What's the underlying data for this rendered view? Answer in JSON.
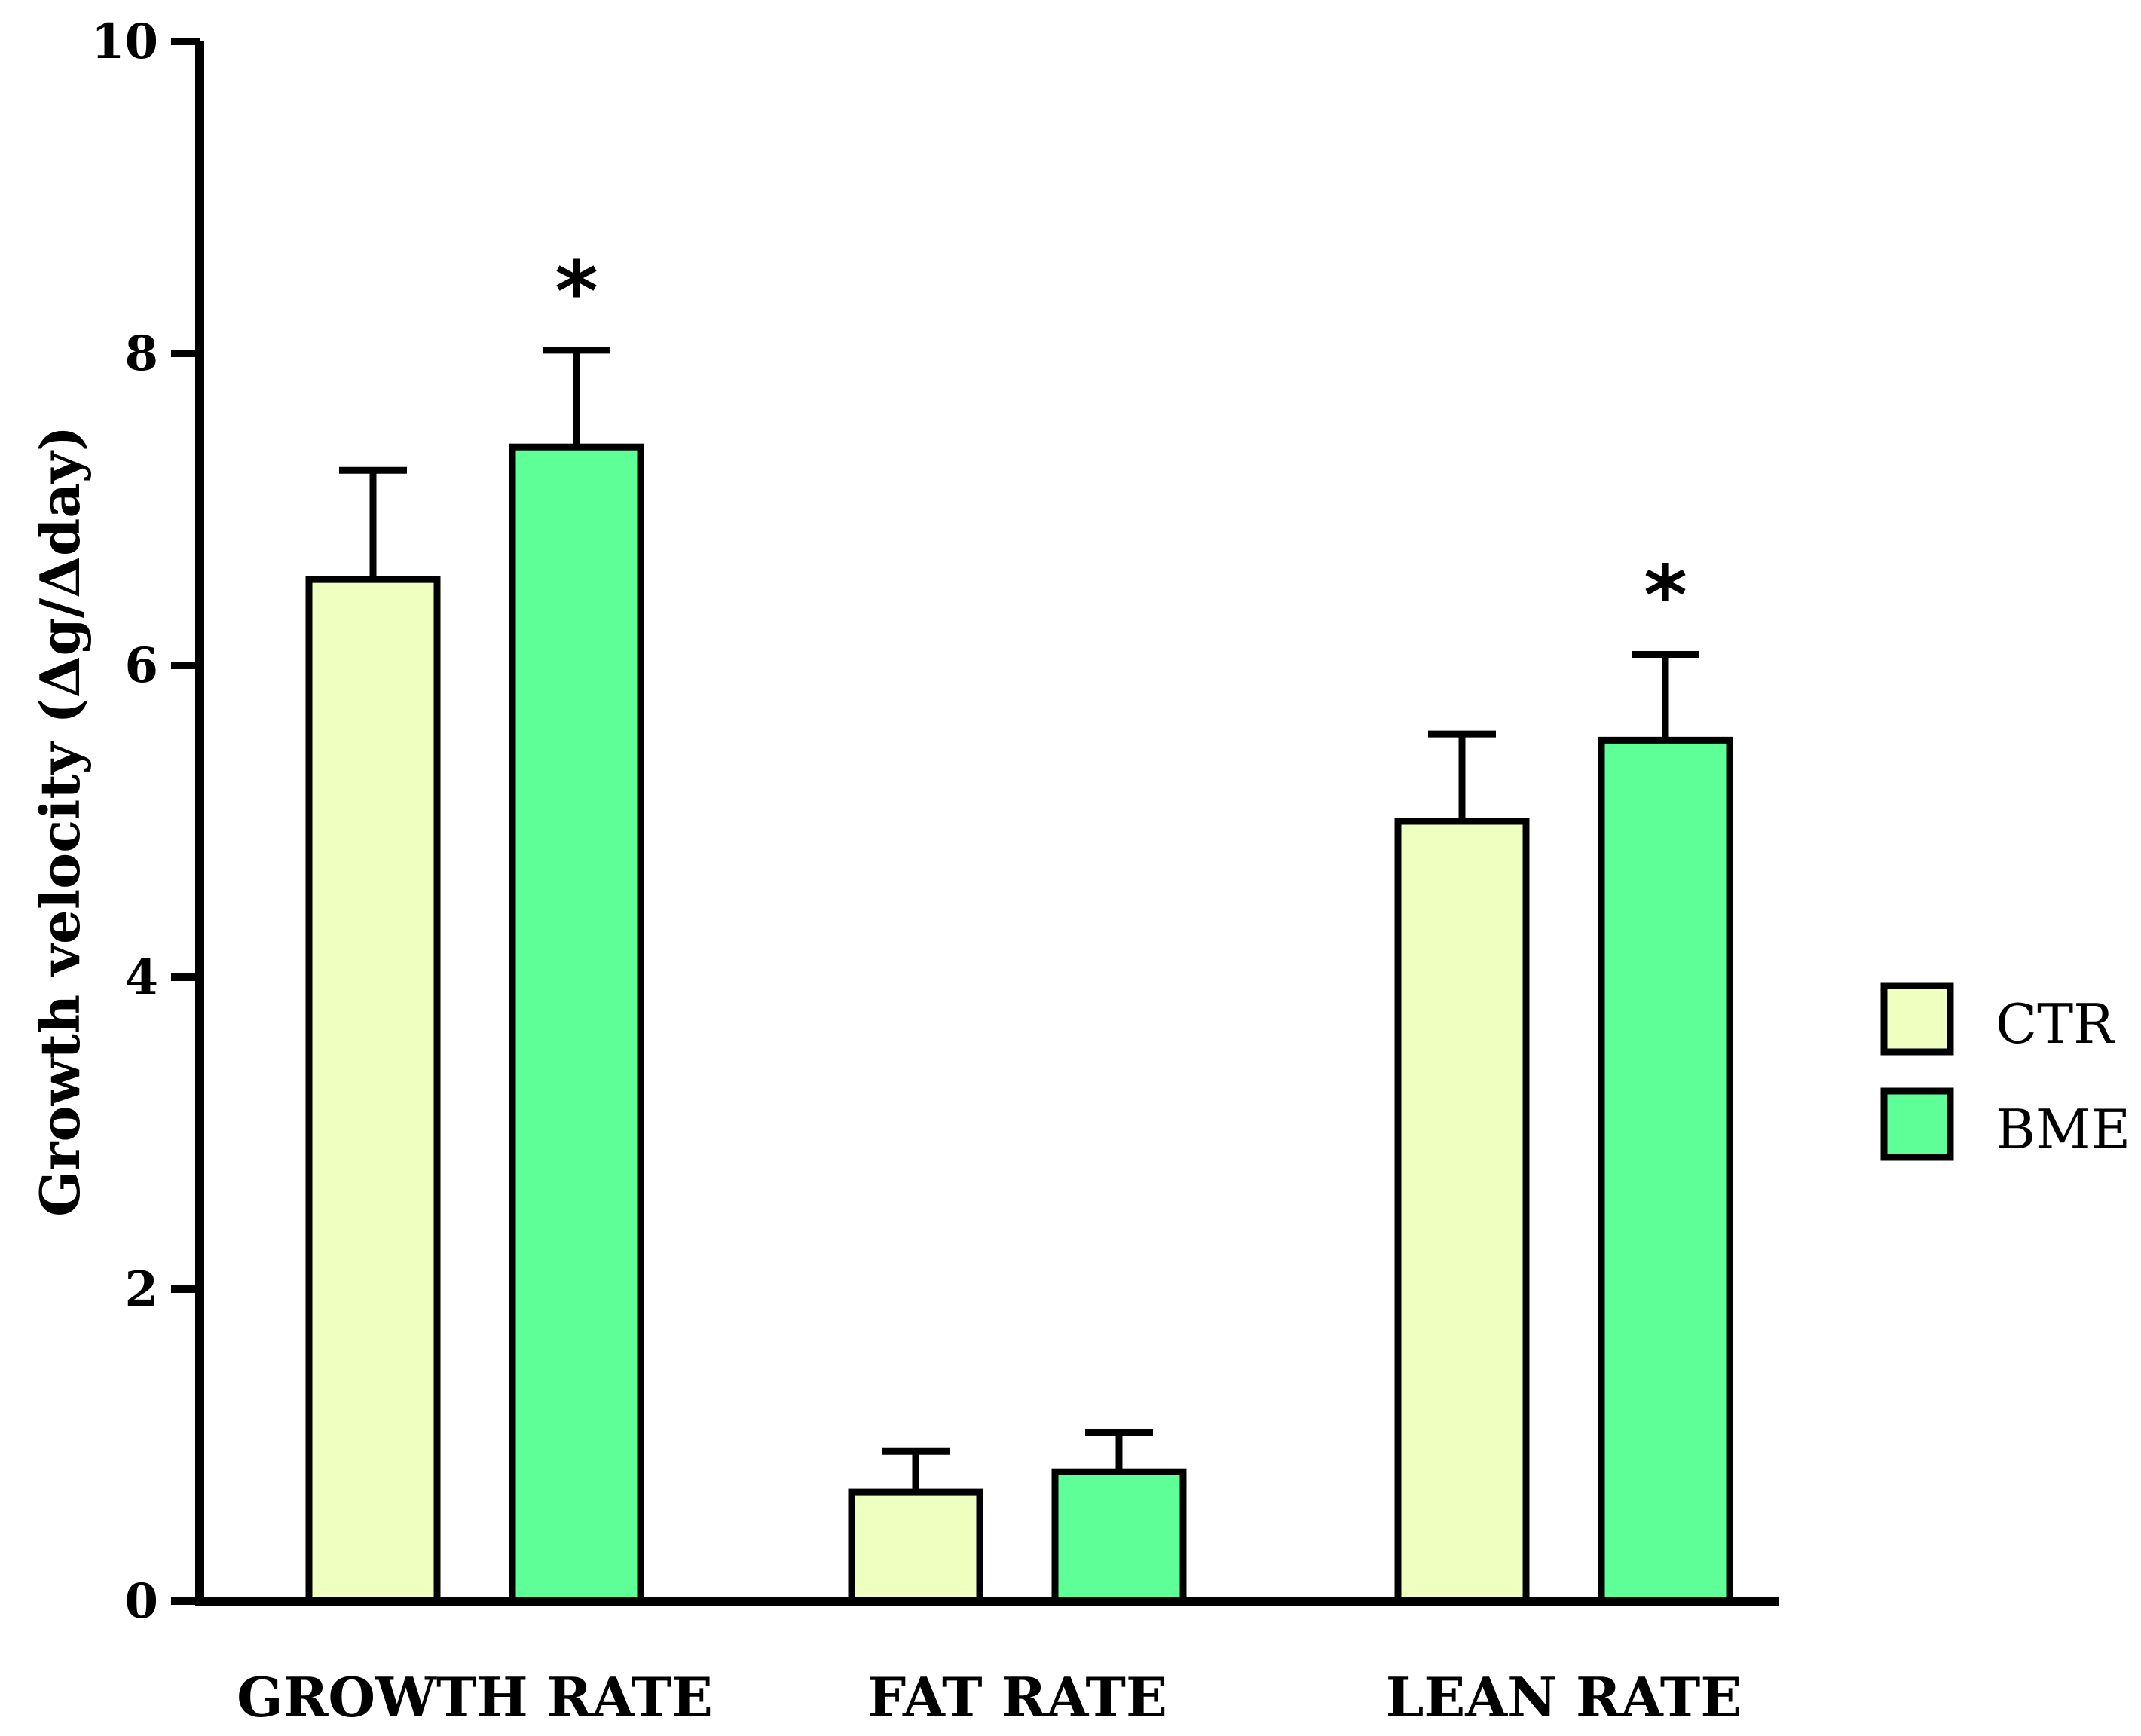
{
  "chart_data": {
    "type": "bar",
    "title": "",
    "xlabel": "",
    "ylabel": "Growth velocity (Δg/Δday)",
    "ylim": [
      0,
      10
    ],
    "yticks": [
      0,
      2,
      4,
      6,
      8,
      10
    ],
    "ytick_labels": [
      "0",
      "2",
      "4",
      "6",
      "8",
      "10"
    ],
    "categories": [
      "GROWTH RATE",
      "FAT RATE",
      "LEAN RATE"
    ],
    "series": [
      {
        "name": "CTR",
        "color": "#eeffbf",
        "values": [
          6.55,
          0.7,
          5.0
        ],
        "errors": [
          0.7,
          0.26,
          0.56
        ],
        "significance": [
          "",
          "",
          ""
        ]
      },
      {
        "name": "BME",
        "color": "#5dff96",
        "values": [
          7.4,
          0.83,
          5.52
        ],
        "errors": [
          0.62,
          0.25,
          0.55
        ],
        "significance": [
          "*",
          "",
          "*"
        ]
      }
    ],
    "legend": {
      "position": "right",
      "entries": [
        "CTR",
        "BME"
      ]
    },
    "grid": false
  }
}
